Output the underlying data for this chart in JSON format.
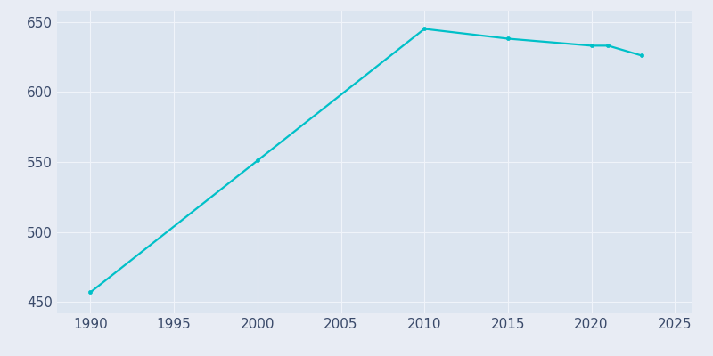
{
  "years": [
    1990,
    2000,
    2010,
    2015,
    2020,
    2021,
    2023
  ],
  "population": [
    457,
    551,
    645,
    638,
    633,
    633,
    626
  ],
  "line_color": "#00c0c8",
  "marker": "o",
  "marker_size": 3,
  "line_width": 1.6,
  "fig_bg_color": "#e8ecf4",
  "plot_bg_color": "#dce5f0",
  "grid_color": "#f0f4fa",
  "tick_color": "#3a4a6a",
  "xlim": [
    1988,
    2026
  ],
  "ylim": [
    442,
    658
  ],
  "xticks": [
    1990,
    1995,
    2000,
    2005,
    2010,
    2015,
    2020,
    2025
  ],
  "yticks": [
    450,
    500,
    550,
    600,
    650
  ],
  "tick_fontsize": 11
}
